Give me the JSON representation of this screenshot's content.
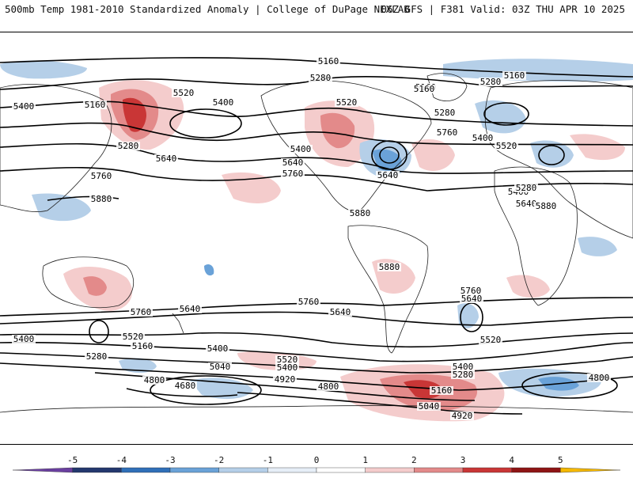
{
  "header": {
    "left": "500mb Temp 1981-2010 Standardized Anomaly | College of DuPage NEXLAB",
    "right": "06Z GFS | F381 Valid: 03Z THU APR 10 2025"
  },
  "map": {
    "contour_labels": [
      "5160",
      "5280",
      "5160",
      "5280",
      "5160",
      "5400",
      "5520",
      "5400",
      "5160",
      "5280",
      "5400",
      "5520",
      "5160",
      "5280",
      "5760",
      "5520",
      "5400",
      "5640",
      "5640",
      "5760",
      "5640",
      "5400",
      "5280",
      "5640",
      "5760",
      "5880",
      "5880",
      "5880",
      "5880",
      "5760",
      "5640",
      "5760",
      "5640",
      "5760",
      "5640",
      "5520",
      "5400",
      "5160",
      "5400",
      "5520",
      "5280",
      "5040",
      "4920",
      "4800",
      "4680",
      "4800",
      "5400",
      "5280",
      "5160",
      "5040",
      "4920",
      "4800",
      "5520",
      "5400"
    ]
  },
  "colorbar": {
    "ticks": [
      "-5",
      "-4",
      "-3",
      "-2",
      "-1",
      "0",
      "1",
      "2",
      "3",
      "4",
      "5"
    ],
    "colors": [
      "#6a3fa0",
      "#23386e",
      "#2f6fb8",
      "#6aa2d8",
      "#b5cfe8",
      "#e6eef7",
      "#ffffff",
      "#f4cccc",
      "#e38a8a",
      "#c93636",
      "#8e1414",
      "#f5b800"
    ]
  }
}
